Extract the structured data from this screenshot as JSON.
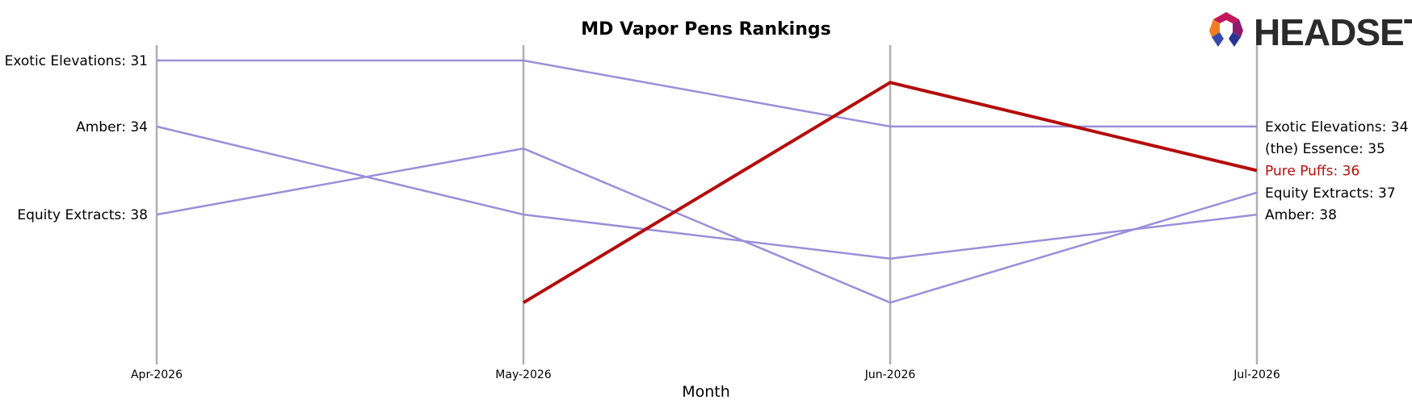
{
  "brand": {
    "name": "HEADSET"
  },
  "chart_data": {
    "type": "line",
    "title": "MD Vapor Pens Rankings",
    "xlabel": "Month",
    "ylabel": "",
    "categories": [
      "Apr-2026",
      "May-2026",
      "Jun-2026",
      "Jul-2026"
    ],
    "y_axis": "rank (inverted, 1 = top)",
    "y_range": [
      30,
      43
    ],
    "grid": false,
    "series": [
      {
        "name": "Exotic Elevations",
        "values": [
          31,
          31,
          34,
          34
        ],
        "color": "#9b8fd9",
        "highlight": false
      },
      {
        "name": "Amber",
        "values": [
          34,
          38,
          40,
          38
        ],
        "color": "#9b8fd9",
        "highlight": false
      },
      {
        "name": "Equity Extracts",
        "values": [
          38,
          35,
          42,
          37
        ],
        "color": "#9b8fd9",
        "highlight": false
      },
      {
        "name": "Pure Puffs",
        "values": [
          null,
          42,
          32,
          36
        ],
        "color": "#b40c0c",
        "highlight": true
      },
      {
        "name": "(the) Essence",
        "values": [
          null,
          null,
          null,
          35
        ],
        "color": "#9b8fd9",
        "highlight": false
      }
    ],
    "left_labels": [
      "Exotic Elevations: 31",
      "Amber: 34",
      "Equity Extracts: 38"
    ],
    "right_labels": [
      {
        "text": "Exotic Elevations: 34",
        "rank": 34,
        "highlight": false
      },
      {
        "text": "(the) Essence: 35",
        "rank": 35,
        "highlight": false
      },
      {
        "text": "Pure Puffs: 36",
        "rank": 36,
        "highlight": true
      },
      {
        "text": "Equity Extracts: 37",
        "rank": 37,
        "highlight": false
      },
      {
        "text": "Amber: 38",
        "rank": 38,
        "highlight": false
      }
    ],
    "colors": {
      "axis_line": "#b0b0b0",
      "series_default": "#9b8fd9",
      "series_highlight": "#b40c0c",
      "label_default": "#000000",
      "label_highlight": "#b40c0c"
    }
  }
}
